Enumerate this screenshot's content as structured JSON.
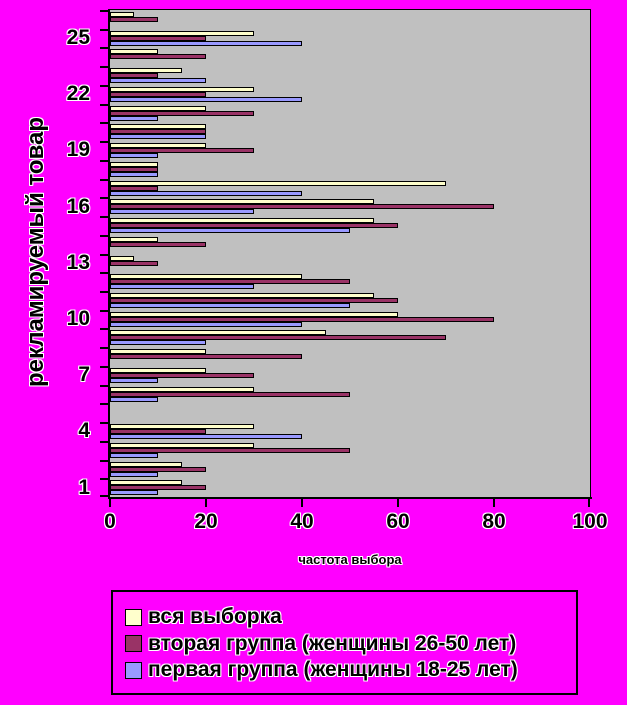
{
  "page": {
    "background": "#FF00FF",
    "plot_background": "#C0C0C0"
  },
  "chart_data": {
    "type": "bar",
    "orientation": "horizontal-grouped",
    "title": "",
    "xlabel": "частота выбора",
    "ylabel": "рекламируемый товар",
    "xlim": [
      0,
      100
    ],
    "x_ticks": [
      0,
      20,
      40,
      60,
      80,
      100
    ],
    "y_tick_labels": [
      1,
      4,
      7,
      10,
      13,
      16,
      19,
      22,
      25
    ],
    "grid": "off",
    "legend_position": "bottom",
    "categories": [
      1,
      2,
      3,
      4,
      5,
      6,
      7,
      8,
      9,
      10,
      11,
      12,
      13,
      14,
      15,
      16,
      17,
      18,
      19,
      20,
      21,
      22,
      23,
      24,
      25,
      26
    ],
    "series": [
      {
        "name": "вся выборка",
        "color": "#FFFFCC",
        "values": [
          15,
          15,
          30,
          30,
          0,
          30,
          20,
          20,
          45,
          60,
          55,
          40,
          5,
          10,
          55,
          55,
          70,
          10,
          20,
          20,
          20,
          30,
          15,
          10,
          30,
          5
        ]
      },
      {
        "name": "вторая группа (женщины 26-50 лет)",
        "color": "#993366",
        "values": [
          20,
          20,
          50,
          20,
          0,
          50,
          30,
          40,
          70,
          80,
          60,
          50,
          10,
          20,
          60,
          80,
          10,
          10,
          30,
          20,
          30,
          20,
          10,
          20,
          20,
          10
        ]
      },
      {
        "name": "первая группа (женщины 18-25 лет)",
        "color": "#9999FF",
        "values": [
          10,
          10,
          10,
          40,
          0,
          10,
          10,
          0,
          20,
          40,
          50,
          30,
          0,
          0,
          50,
          30,
          40,
          10,
          10,
          20,
          10,
          40,
          20,
          0,
          40,
          0
        ]
      }
    ]
  }
}
